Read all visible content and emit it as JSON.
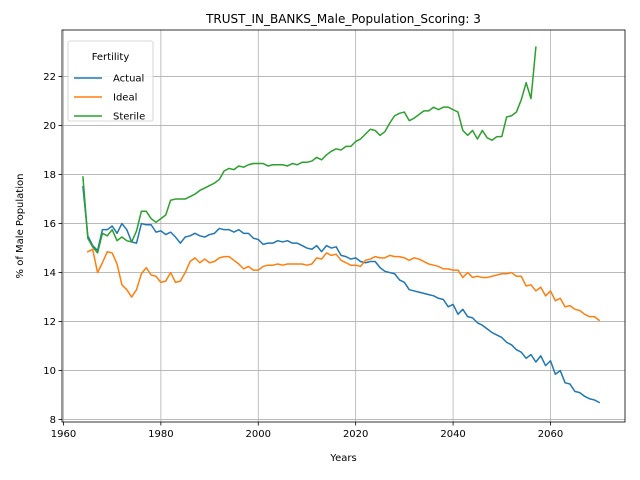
{
  "chart_data": {
    "type": "line",
    "title": "TRUST_IN_BANKS_Male_Population_Scoring: 3",
    "xlabel": "Years",
    "ylabel": "% of Male Population",
    "xlim": [
      1959.7,
      2075.3
    ],
    "ylim": [
      7.9,
      23.9
    ],
    "xticks": [
      1960,
      1980,
      2000,
      2020,
      2040,
      2060
    ],
    "yticks": [
      8,
      10,
      12,
      14,
      16,
      18,
      20,
      22
    ],
    "grid": true,
    "legend": {
      "title": "Fertility",
      "position": "upper-left",
      "entries": [
        "Actual",
        "Ideal",
        "Sterile"
      ]
    },
    "series": [
      {
        "name": "Actual",
        "color": "#1f77b4",
        "x": [
          1964,
          1965,
          1966,
          1967,
          1968,
          1969,
          1970,
          1971,
          1972,
          1973,
          1974,
          1975,
          1976,
          1977,
          1978,
          1979,
          1980,
          1981,
          1982,
          1983,
          1984,
          1985,
          1986,
          1987,
          1988,
          1989,
          1990,
          1991,
          1992,
          1993,
          1994,
          1995,
          1996,
          1997,
          1998,
          1999,
          2000,
          2001,
          2002,
          2003,
          2004,
          2005,
          2006,
          2007,
          2008,
          2009,
          2010,
          2011,
          2012,
          2013,
          2014,
          2015,
          2016,
          2017,
          2018,
          2019,
          2020,
          2021,
          2022,
          2023,
          2024,
          2025,
          2026,
          2027,
          2028,
          2029,
          2030,
          2031,
          2032,
          2033,
          2034,
          2035,
          2036,
          2037,
          2038,
          2039,
          2040,
          2041,
          2042,
          2043,
          2044,
          2045,
          2046,
          2047,
          2048,
          2049,
          2050,
          2051,
          2052,
          2053,
          2054,
          2055,
          2056,
          2057,
          2058,
          2059,
          2060,
          2061,
          2062,
          2063,
          2064,
          2065,
          2066,
          2067,
          2068,
          2069,
          2070
        ],
        "y": [
          17.5,
          15.5,
          15.1,
          14.9,
          15.75,
          15.75,
          15.9,
          15.6,
          16.0,
          15.75,
          15.25,
          15.2,
          16.0,
          15.95,
          15.95,
          15.65,
          15.7,
          15.55,
          15.65,
          15.45,
          15.2,
          15.45,
          15.5,
          15.6,
          15.5,
          15.45,
          15.55,
          15.6,
          15.8,
          15.75,
          15.75,
          15.65,
          15.75,
          15.6,
          15.6,
          15.4,
          15.35,
          15.15,
          15.2,
          15.2,
          15.3,
          15.25,
          15.3,
          15.2,
          15.2,
          15.1,
          15.0,
          14.95,
          15.1,
          14.85,
          15.1,
          15.0,
          15.05,
          14.7,
          14.65,
          14.55,
          14.6,
          14.45,
          14.4,
          14.45,
          14.45,
          14.2,
          14.05,
          14.0,
          13.95,
          13.7,
          13.6,
          13.3,
          13.25,
          13.2,
          13.15,
          13.1,
          13.05,
          12.95,
          12.9,
          12.6,
          12.7,
          12.3,
          12.5,
          12.2,
          12.15,
          11.95,
          11.85,
          11.7,
          11.55,
          11.45,
          11.35,
          11.15,
          11.05,
          10.85,
          10.75,
          10.5,
          10.65,
          10.35,
          10.6,
          10.2,
          10.4,
          9.85,
          10.0,
          9.5,
          9.45,
          9.15,
          9.1,
          8.95,
          8.85,
          8.8,
          8.7
        ]
      },
      {
        "name": "Ideal",
        "color": "#ff7f0e",
        "x": [
          1965,
          1966,
          1967,
          1968,
          1969,
          1970,
          1971,
          1972,
          1973,
          1974,
          1975,
          1976,
          1977,
          1978,
          1979,
          1980,
          1981,
          1982,
          1983,
          1984,
          1985,
          1986,
          1987,
          1988,
          1989,
          1990,
          1991,
          1992,
          1993,
          1994,
          1995,
          1996,
          1997,
          1998,
          1999,
          2000,
          2001,
          2002,
          2003,
          2004,
          2005,
          2006,
          2007,
          2008,
          2009,
          2010,
          2011,
          2012,
          2013,
          2014,
          2015,
          2016,
          2017,
          2018,
          2019,
          2020,
          2021,
          2022,
          2023,
          2024,
          2025,
          2026,
          2027,
          2028,
          2029,
          2030,
          2031,
          2032,
          2033,
          2034,
          2035,
          2036,
          2037,
          2038,
          2039,
          2040,
          2041,
          2042,
          2043,
          2044,
          2045,
          2046,
          2047,
          2048,
          2049,
          2050,
          2051,
          2052,
          2053,
          2054,
          2055,
          2056,
          2057,
          2058,
          2059,
          2060,
          2061,
          2062,
          2063,
          2064,
          2065,
          2066,
          2067,
          2068,
          2069,
          2070
        ],
        "y": [
          14.85,
          14.95,
          14.0,
          14.4,
          14.85,
          14.8,
          14.35,
          13.5,
          13.3,
          13.0,
          13.3,
          13.95,
          14.2,
          13.9,
          13.85,
          13.6,
          13.65,
          14.0,
          13.6,
          13.65,
          14.0,
          14.45,
          14.6,
          14.4,
          14.55,
          14.4,
          14.45,
          14.6,
          14.65,
          14.65,
          14.5,
          14.35,
          14.15,
          14.25,
          14.1,
          14.1,
          14.25,
          14.3,
          14.3,
          14.35,
          14.3,
          14.35,
          14.35,
          14.35,
          14.35,
          14.3,
          14.35,
          14.6,
          14.55,
          14.8,
          14.7,
          14.75,
          14.5,
          14.4,
          14.3,
          14.3,
          14.25,
          14.5,
          14.55,
          14.65,
          14.6,
          14.6,
          14.7,
          14.65,
          14.65,
          14.6,
          14.5,
          14.6,
          14.55,
          14.45,
          14.35,
          14.3,
          14.25,
          14.15,
          14.15,
          14.1,
          14.1,
          13.8,
          14.0,
          13.8,
          13.85,
          13.8,
          13.8,
          13.85,
          13.9,
          13.95,
          13.95,
          14.0,
          13.85,
          13.85,
          13.45,
          13.5,
          13.25,
          13.4,
          13.05,
          13.25,
          12.85,
          12.95,
          12.6,
          12.65,
          12.5,
          12.45,
          12.3,
          12.2,
          12.2,
          12.05
        ]
      },
      {
        "name": "Sterile",
        "color": "#2ca02c",
        "x": [
          1964,
          1965,
          1966,
          1967,
          1968,
          1969,
          1970,
          1971,
          1972,
          1973,
          1974,
          1975,
          1976,
          1977,
          1978,
          1979,
          1980,
          1981,
          1982,
          1983,
          1984,
          1985,
          1986,
          1987,
          1988,
          1989,
          1990,
          1991,
          1992,
          1993,
          1994,
          1995,
          1996,
          1997,
          1998,
          1999,
          2000,
          2001,
          2002,
          2003,
          2004,
          2005,
          2006,
          2007,
          2008,
          2009,
          2010,
          2011,
          2012,
          2013,
          2014,
          2015,
          2016,
          2017,
          2018,
          2019,
          2020,
          2021,
          2022,
          2023,
          2024,
          2025,
          2026,
          2027,
          2028,
          2029,
          2030,
          2031,
          2032,
          2033,
          2034,
          2035,
          2036,
          2037,
          2038,
          2039,
          2040,
          2041,
          2042,
          2043,
          2044,
          2045,
          2046,
          2047,
          2048,
          2049,
          2050,
          2051,
          2052,
          2053,
          2054,
          2055,
          2056,
          2057
        ],
        "y": [
          17.9,
          15.4,
          15.05,
          14.8,
          15.6,
          15.5,
          15.75,
          15.3,
          15.45,
          15.3,
          15.25,
          15.7,
          16.5,
          16.5,
          16.2,
          16.05,
          16.2,
          16.35,
          16.95,
          17.0,
          17.0,
          17.0,
          17.1,
          17.2,
          17.35,
          17.45,
          17.55,
          17.65,
          17.8,
          18.15,
          18.25,
          18.2,
          18.35,
          18.3,
          18.4,
          18.45,
          18.45,
          18.45,
          18.35,
          18.4,
          18.4,
          18.4,
          18.35,
          18.45,
          18.4,
          18.5,
          18.5,
          18.55,
          18.7,
          18.6,
          18.8,
          18.95,
          19.05,
          19.0,
          19.15,
          19.15,
          19.35,
          19.45,
          19.65,
          19.85,
          19.8,
          19.6,
          19.75,
          20.1,
          20.4,
          20.5,
          20.55,
          20.2,
          20.3,
          20.45,
          20.6,
          20.6,
          20.75,
          20.65,
          20.75,
          20.75,
          20.65,
          20.55,
          19.8,
          19.6,
          19.8,
          19.45,
          19.8,
          19.5,
          19.4,
          19.55,
          19.55,
          20.35,
          20.4,
          20.55,
          21.05,
          21.75,
          21.1,
          23.2
        ]
      }
    ]
  }
}
